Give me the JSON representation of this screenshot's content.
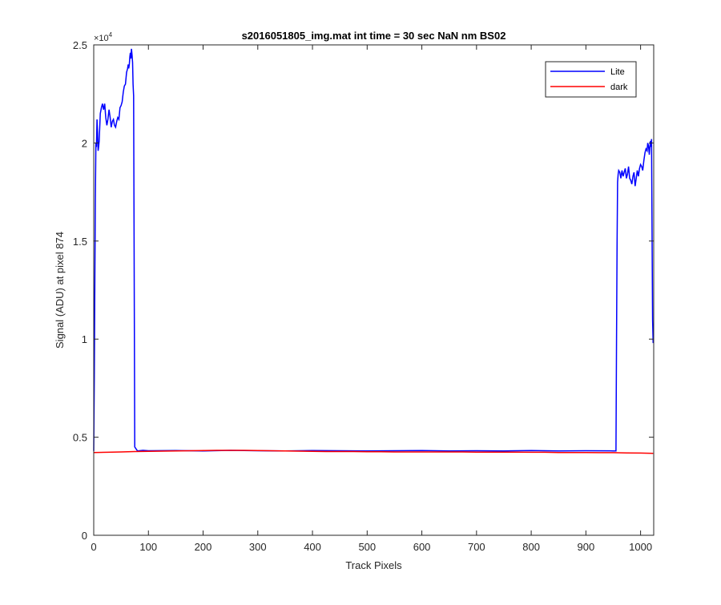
{
  "chart_data": {
    "type": "line",
    "title": "s2016051805_img.mat int time = 30 sec  NaN nm BS02",
    "xlabel": "Track Pixels",
    "ylabel": "Signal (ADU) at pixel 874",
    "xlim": [
      0,
      1024
    ],
    "ylim": [
      0,
      25000
    ],
    "y_exponent_label": "×10",
    "y_exponent_power": "4",
    "x_ticks": [
      0,
      100,
      200,
      300,
      400,
      500,
      600,
      700,
      800,
      900,
      1000
    ],
    "x_tick_labels": [
      "0",
      "100",
      "200",
      "300",
      "400",
      "500",
      "600",
      "700",
      "800",
      "900",
      "1000"
    ],
    "y_ticks": [
      0,
      5000,
      10000,
      15000,
      20000,
      25000
    ],
    "y_tick_labels": [
      "0",
      "0.5",
      "1",
      "1.5",
      "2",
      "2.5"
    ],
    "grid": false,
    "legend_position": "top-right",
    "series": [
      {
        "name": "Lite",
        "color": "#0000ff",
        "x": [
          0,
          1,
          2,
          3,
          4,
          5,
          6,
          7,
          8,
          9,
          10,
          12,
          14,
          16,
          18,
          20,
          22,
          24,
          26,
          28,
          30,
          32,
          34,
          36,
          38,
          40,
          42,
          44,
          46,
          48,
          50,
          52,
          54,
          56,
          58,
          60,
          62,
          63,
          64,
          65,
          66,
          67,
          68,
          69,
          70,
          71,
          72,
          73,
          75,
          80,
          90,
          100,
          150,
          200,
          250,
          300,
          350,
          400,
          450,
          500,
          550,
          600,
          650,
          700,
          750,
          800,
          850,
          900,
          950,
          955,
          956,
          957,
          958,
          959,
          960,
          962,
          964,
          966,
          968,
          970,
          972,
          974,
          976,
          978,
          980,
          982,
          984,
          986,
          988,
          990,
          992,
          994,
          996,
          998,
          1000,
          1002,
          1004,
          1006,
          1008,
          1010,
          1012,
          1013,
          1014,
          1015,
          1016,
          1017,
          1018,
          1019,
          1020,
          1021,
          1022,
          1023
        ],
        "y": [
          4300,
          8000,
          13000,
          17000,
          20000,
          19800,
          21200,
          20500,
          19600,
          19800,
          20100,
          21500,
          21800,
          22000,
          21700,
          22000,
          21300,
          20900,
          21200,
          21700,
          21300,
          20800,
          21100,
          21200,
          20900,
          20800,
          21100,
          21300,
          21200,
          21800,
          21900,
          22100,
          22600,
          22900,
          23000,
          23600,
          23800,
          24000,
          23800,
          24000,
          24400,
          24600,
          24300,
          24800,
          24500,
          24100,
          23000,
          22400,
          4500,
          4300,
          4330,
          4310,
          4320,
          4300,
          4330,
          4310,
          4300,
          4320,
          4310,
          4300,
          4310,
          4320,
          4300,
          4310,
          4300,
          4320,
          4300,
          4310,
          4300,
          4300,
          10000,
          15000,
          18000,
          18400,
          18600,
          18500,
          18200,
          18600,
          18300,
          18500,
          18700,
          18200,
          18400,
          18800,
          18200,
          18100,
          17900,
          18300,
          18500,
          17800,
          18200,
          18600,
          18300,
          18700,
          18900,
          18800,
          18600,
          19100,
          19500,
          19700,
          19600,
          20000,
          19900,
          19700,
          19400,
          19800,
          20100,
          19800,
          20200,
          15000,
          11000,
          9800
        ]
      },
      {
        "name": "dark",
        "color": "#ff0000",
        "x": [
          0,
          25,
          50,
          75,
          100,
          125,
          150,
          175,
          200,
          225,
          250,
          275,
          300,
          325,
          350,
          375,
          400,
          425,
          450,
          475,
          500,
          525,
          550,
          575,
          600,
          625,
          650,
          675,
          700,
          725,
          750,
          775,
          800,
          825,
          850,
          875,
          900,
          925,
          950,
          975,
          1000,
          1023
        ],
        "y": [
          4220,
          4230,
          4250,
          4270,
          4280,
          4290,
          4300,
          4310,
          4320,
          4330,
          4330,
          4330,
          4320,
          4310,
          4300,
          4290,
          4280,
          4270,
          4270,
          4270,
          4260,
          4260,
          4250,
          4250,
          4250,
          4250,
          4250,
          4250,
          4240,
          4240,
          4240,
          4240,
          4230,
          4230,
          4220,
          4220,
          4220,
          4210,
          4210,
          4200,
          4190,
          4180
        ]
      }
    ]
  }
}
